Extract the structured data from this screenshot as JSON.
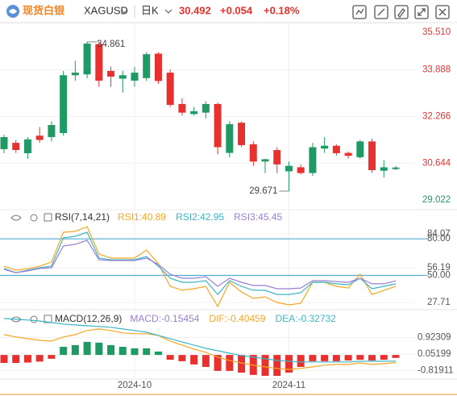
{
  "header": {
    "logo": "现货白银",
    "symbol": "XAGUSD",
    "period": "日K",
    "price": "30.492",
    "change": "+0.054",
    "change_pct": "+0.18%"
  },
  "chart_data": [
    {
      "type": "candlestick",
      "categories": [
        null,
        null,
        null,
        null,
        null,
        null,
        null,
        null,
        null,
        null,
        null,
        "2024-10",
        null,
        null,
        null,
        null,
        null,
        null,
        null,
        null,
        null,
        null,
        null,
        null,
        "2024-11",
        null,
        null,
        null,
        null,
        null,
        null,
        null,
        null,
        null
      ],
      "open": [
        31.13,
        31.35,
        30.99,
        31.6,
        31.55,
        31.69,
        33.7,
        33.73,
        34.78,
        33.85,
        33.58,
        33.51,
        33.6,
        34.45,
        33.79,
        32.7,
        32.35,
        32.4,
        32.7,
        31.0,
        32.05,
        31.3,
        30.7,
        31.1,
        30.36,
        30.5,
        30.3,
        31.15,
        31.25,
        31.0,
        30.85,
        31.4,
        30.38,
        30.438
      ],
      "high": [
        31.63,
        31.45,
        31.55,
        31.9,
        32.1,
        33.85,
        34.2,
        34.861,
        34.86,
        34.0,
        33.85,
        34.0,
        34.5,
        34.5,
        33.9,
        32.9,
        32.6,
        32.8,
        32.75,
        32.1,
        32.1,
        31.4,
        30.8,
        31.2,
        30.7,
        30.6,
        31.35,
        31.55,
        31.3,
        31.05,
        31.45,
        31.5,
        30.75,
        30.55
      ],
      "low": [
        30.99,
        31.0,
        30.8,
        31.35,
        31.4,
        31.6,
        33.5,
        33.6,
        33.3,
        33.3,
        33.1,
        33.3,
        33.5,
        33.4,
        32.6,
        32.3,
        32.3,
        32.2,
        30.95,
        30.85,
        31.2,
        30.55,
        30.3,
        30.3,
        29.671,
        30.25,
        30.2,
        31.0,
        30.9,
        30.8,
        30.8,
        30.3,
        30.15,
        30.4
      ],
      "close": [
        31.55,
        31.1,
        31.47,
        31.45,
        31.97,
        33.7,
        33.79,
        34.8,
        33.51,
        33.65,
        33.7,
        33.79,
        34.43,
        33.5,
        32.67,
        32.4,
        32.45,
        32.7,
        31.2,
        32.0,
        31.27,
        30.7,
        30.78,
        30.6,
        30.55,
        30.3,
        31.2,
        31.25,
        30.99,
        30.9,
        31.4,
        30.4,
        30.5,
        30.492
      ],
      "up_color": "#1f9a64",
      "down_color": "#e8312f",
      "ylim": [
        28.97,
        35.53
      ],
      "yticks": [
        {
          "value": 35.51,
          "label": "35.510"
        },
        {
          "value": 33.888,
          "label": "33.888"
        },
        {
          "value": 32.266,
          "label": "32.266"
        },
        {
          "value": 30.644,
          "label": "30.644"
        },
        {
          "value": 29.022,
          "label": "29.022"
        }
      ],
      "max_annotation": 34.861,
      "min_annotation": 29.671,
      "grid": true
    },
    {
      "type": "line",
      "title": "RSI(7,14,21)",
      "series": [
        {
          "name": "RSI1:40.89",
          "color": "#f5a623",
          "values": [
            57.5,
            54.2,
            55.5,
            57.5,
            60.9,
            85.4,
            86.1,
            90.0,
            67.5,
            64.2,
            64.2,
            64.2,
            70.8,
            59.5,
            41.0,
            37.7,
            39.0,
            41.0,
            24.4,
            44.3,
            36.3,
            31.0,
            32.3,
            27.7,
            25.7,
            27.0,
            44.3,
            44.3,
            41.0,
            39.6,
            50.9,
            34.3,
            37.7,
            40.89
          ]
        },
        {
          "name": "RSI2:42.95",
          "color": "#3bb5c6",
          "values": [
            55.6,
            52.2,
            54.2,
            56.2,
            57.5,
            80.8,
            82.1,
            85.4,
            64.2,
            62.8,
            62.8,
            62.8,
            65.5,
            57.5,
            47.6,
            44.3,
            44.3,
            45.6,
            34.3,
            45.6,
            41.0,
            37.7,
            37.7,
            34.3,
            34.3,
            35.7,
            44.3,
            44.3,
            43.0,
            42.3,
            47.6,
            39.0,
            41.0,
            42.95
          ]
        },
        {
          "name": "RSI3:45.45",
          "color": "#9b7fd4",
          "values": [
            54.9,
            52.2,
            53.6,
            55.6,
            56.2,
            74.1,
            75.5,
            78.8,
            62.8,
            62.2,
            62.2,
            62.2,
            64.2,
            58.9,
            50.9,
            47.6,
            47.6,
            48.9,
            41.0,
            47.6,
            44.3,
            41.6,
            41.6,
            39.0,
            39.0,
            39.6,
            45.6,
            45.6,
            44.9,
            44.3,
            47.6,
            43.0,
            43.0,
            45.45
          ]
        }
      ],
      "ylim": [
        22.4,
        90.7
      ],
      "yticks": [
        84.07,
        {
          "value": 80,
          "label": "80.00"
        },
        56.19,
        {
          "value": 50,
          "label": "50.00"
        },
        27.71
      ],
      "level_color": "#3a9fd0"
    },
    {
      "type": "macd",
      "title": "MACD(12,26,9)",
      "series": [
        {
          "name": "MACD:-0.15454",
          "color": "#9b7fd4",
          "kind": "bar",
          "up_color": "#1f9a64",
          "down_color": "#e8312f",
          "values": [
            -0.42,
            -0.42,
            -0.4,
            -0.35,
            -0.2,
            0.43,
            0.52,
            0.69,
            0.65,
            0.52,
            0.43,
            0.35,
            0.35,
            0.18,
            -0.25,
            -0.33,
            -0.5,
            -0.63,
            -0.84,
            -0.84,
            -0.93,
            -1.05,
            -1.1,
            -1.1,
            -0.93,
            -0.63,
            -0.33,
            -0.33,
            -0.33,
            -0.29,
            -0.25,
            -0.29,
            -0.25,
            -0.15454
          ]
        },
        {
          "name": "DIF:-0.40459",
          "color": "#f5a623",
          "kind": "line",
          "values": [
            1.07,
            0.95,
            0.86,
            0.77,
            0.73,
            0.95,
            1.07,
            1.29,
            1.37,
            1.29,
            1.16,
            1.12,
            1.12,
            1.03,
            0.73,
            0.52,
            0.31,
            0.14,
            -0.12,
            -0.29,
            -0.42,
            -0.54,
            -0.63,
            -0.71,
            -0.76,
            -0.71,
            -0.63,
            -0.54,
            -0.5,
            -0.5,
            -0.42,
            -0.5,
            -0.46,
            -0.40459
          ]
        },
        {
          "name": "DEA:-0.32732",
          "color": "#3bb5c6",
          "kind": "line",
          "values": [
            1.92,
            1.88,
            1.84,
            1.79,
            1.71,
            1.63,
            1.58,
            1.54,
            1.5,
            1.46,
            1.37,
            1.29,
            1.2,
            1.03,
            0.86,
            0.69,
            0.52,
            0.35,
            0.22,
            0.09,
            -0.03,
            -0.12,
            -0.2,
            -0.29,
            -0.33,
            -0.37,
            -0.37,
            -0.37,
            -0.37,
            -0.37,
            -0.33,
            -0.33,
            -0.33,
            -0.32732
          ]
        }
      ],
      "ylim": [
        -1.27,
        2.13
      ],
      "yticks": [
        0.92309,
        0.05199,
        -0.81911
      ]
    }
  ]
}
